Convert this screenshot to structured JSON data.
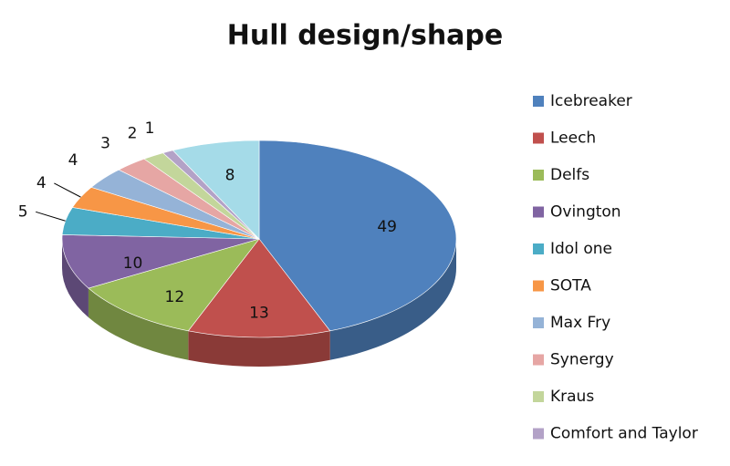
{
  "chart_data": {
    "type": "pie3d",
    "title": "Hull design/shape",
    "categories": [
      "Icebreaker",
      "Leech",
      "Delfs",
      "Ovington",
      "Idol one",
      "SOTA",
      "Max Fry",
      "Synergy",
      "Kraus",
      "Comfort and Taylor",
      null
    ],
    "values": [
      49,
      13,
      12,
      10,
      5,
      4,
      4,
      3,
      2,
      1,
      8
    ],
    "colors": [
      "#4f81bd",
      "#c0504d",
      "#9bbb59",
      "#8064a2",
      "#4bacc6",
      "#f79646",
      "#95b3d7",
      "#e6a6a4",
      "#c3d69b",
      "#b3a2c7",
      "#a5dbe8"
    ],
    "legend": "right"
  }
}
